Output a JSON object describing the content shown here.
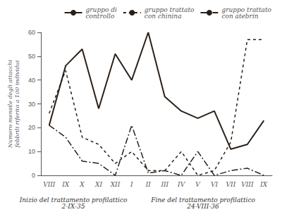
{
  "chart_data": {
    "type": "line",
    "categories": [
      "VIII",
      "IX",
      "X",
      "XI",
      "XII",
      "I",
      "II",
      "III",
      "IV",
      "V",
      "VI",
      "VII",
      "VIII",
      "IX"
    ],
    "series": [
      {
        "name": "gruppo di\ncontrollo",
        "color": "#2a2018",
        "line_style": "solid",
        "values": [
          21,
          46,
          53,
          28,
          51,
          40,
          60,
          33,
          27,
          24,
          27,
          11,
          13,
          23
        ]
      },
      {
        "name": "gruppo trattato\ncon chinina",
        "color": "#2a2018",
        "line_style": "dashed",
        "values": [
          26,
          44,
          16,
          13,
          5,
          10,
          2,
          2,
          10,
          0,
          2,
          14,
          57,
          57
        ]
      },
      {
        "name": "gruppo trattato\ncon atebrin",
        "color": "#2a2018",
        "line_style": "dashdot",
        "values": [
          21,
          16,
          6,
          5,
          0,
          21,
          1,
          2,
          0,
          10,
          0,
          2,
          3,
          0
        ]
      }
    ],
    "ylabel": "Numero mensile degli attacchi febbrili riferito a 100 individui",
    "annotations": [
      "Inizio del trattamento profilattico\n2-IX-35",
      "Fine del trattamento profilattico\n24-VIII-36"
    ],
    "ylim": [
      0,
      60
    ],
    "yticks": [
      0,
      10,
      20,
      30,
      40,
      50,
      60
    ],
    "grid": false,
    "legend": "upper right"
  }
}
